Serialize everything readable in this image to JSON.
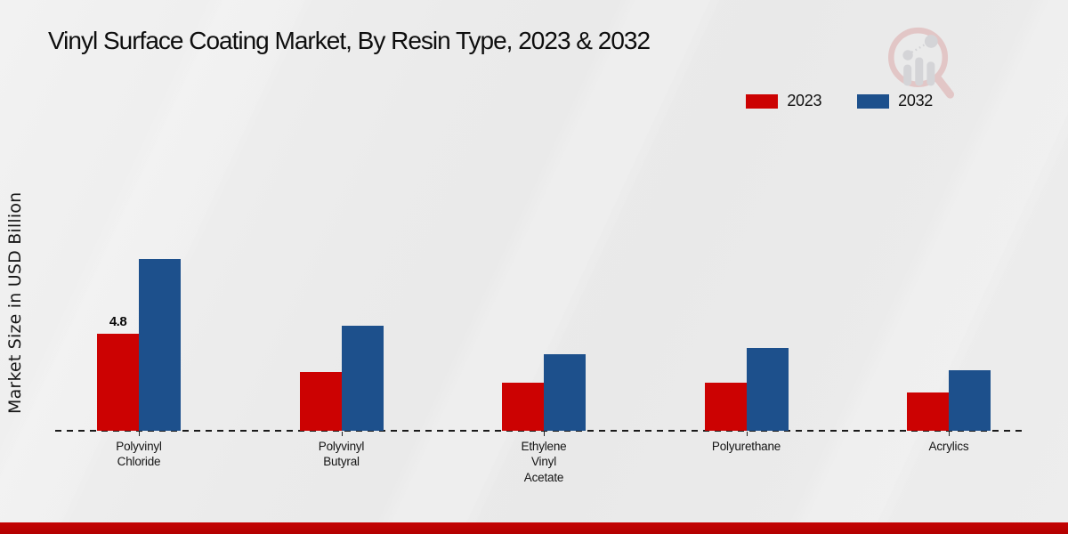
{
  "page": {
    "title": "Vinyl Surface Coating Market, By Resin Type, 2023 & 2032",
    "y_axis_label": "Market Size in USD Billion",
    "footer_color": "#b80000",
    "background_color": "#ebebeb",
    "logo_icon": "market-research-magnifier-growth-logo"
  },
  "chart_data": {
    "type": "bar",
    "title": "Vinyl Surface Coating Market, By Resin Type, 2023 & 2032",
    "xlabel": "",
    "ylabel": "Market Size in USD Billion",
    "unit": "USD Billion",
    "categories": [
      "Polyvinyl\nChloride",
      "Polyvinyl\nButyral",
      "Ethylene\nVinyl\nAcetate",
      "Polyurethane",
      "Acrylics"
    ],
    "series": [
      {
        "name": "2023",
        "color": "#cc0202",
        "values": [
          4.8,
          2.9,
          2.4,
          2.4,
          1.9
        ]
      },
      {
        "name": "2032",
        "color": "#1d508c",
        "values": [
          8.5,
          5.2,
          3.8,
          4.1,
          3.0
        ]
      }
    ],
    "data_labels": [
      {
        "series_index": 0,
        "category_index": 0,
        "text": "4.8"
      }
    ],
    "ylim": [
      0,
      9
    ],
    "grid": false,
    "axis_style": "dashed-baseline-only",
    "legend_position": "top-right"
  }
}
